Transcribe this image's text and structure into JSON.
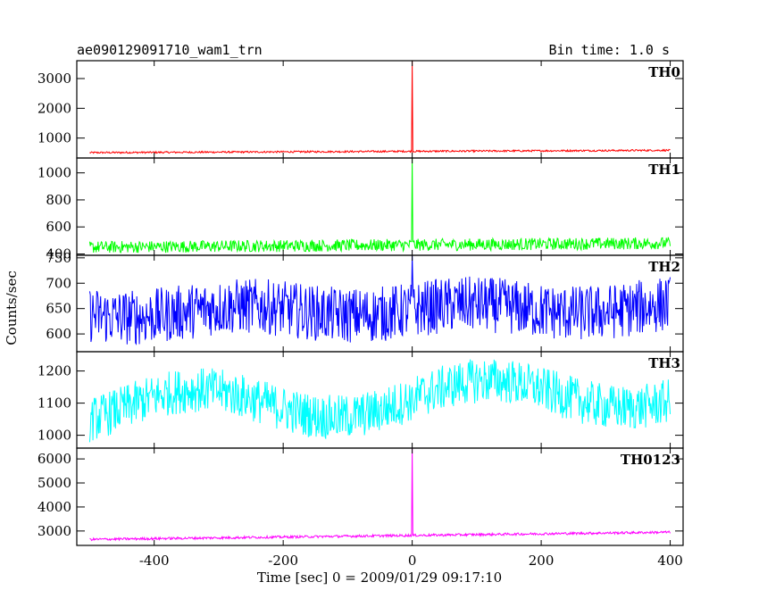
{
  "header": {
    "title": "ae090129091710_wam1_trn",
    "bin_time": "Bin time: 1.0 s"
  },
  "chart_data": {
    "type": "line",
    "xlabel": "Time [sec] 0 = 2009/01/29 09:17:10",
    "ylabel": "Counts/sec",
    "xlim": [
      -520,
      420
    ],
    "x_ticks": [
      -400,
      -200,
      0,
      200,
      400
    ],
    "x_range": [
      -500,
      400
    ],
    "panels": [
      {
        "name": "TH0",
        "color": "#ff0000",
        "ylim": [
          330,
          3600
        ],
        "y_ticks": [
          1000,
          2000,
          3000
        ],
        "base_start": 510,
        "base_end": 590,
        "noise": 30,
        "wave_amp": 0,
        "wave_period": 300,
        "peak": 3600
      },
      {
        "name": "TH1",
        "color": "#00ff00",
        "ylim": [
          390,
          1110
        ],
        "y_ticks": [
          400,
          600,
          800,
          1000
        ],
        "base_start": 450,
        "base_end": 480,
        "noise": 45,
        "wave_amp": 0,
        "wave_period": 300,
        "peak": 1110
      },
      {
        "name": "TH2",
        "color": "#0000ff",
        "ylim": [
          565,
          755
        ],
        "y_ticks": [
          600,
          650,
          700,
          750
        ],
        "base_start": 642,
        "base_end": 652,
        "noise": 55,
        "wave_amp": 10,
        "wave_period": 350,
        "peak": 755
      },
      {
        "name": "TH3",
        "color": "#00ffff",
        "ylim": [
          960,
          1260
        ],
        "y_ticks": [
          1000,
          1100,
          1200
        ],
        "base_start": 1080,
        "base_end": 1140,
        "noise": 70,
        "wave_amp": 50,
        "wave_period": 450,
        "peak": 1150
      },
      {
        "name": "TH0123",
        "color": "#ff00ff",
        "ylim": [
          2400,
          6450
        ],
        "y_ticks": [
          3000,
          4000,
          5000,
          6000
        ],
        "base_start": 2650,
        "base_end": 2950,
        "noise": 50,
        "wave_amp": 0,
        "wave_period": 300,
        "peak": 6450
      }
    ]
  }
}
